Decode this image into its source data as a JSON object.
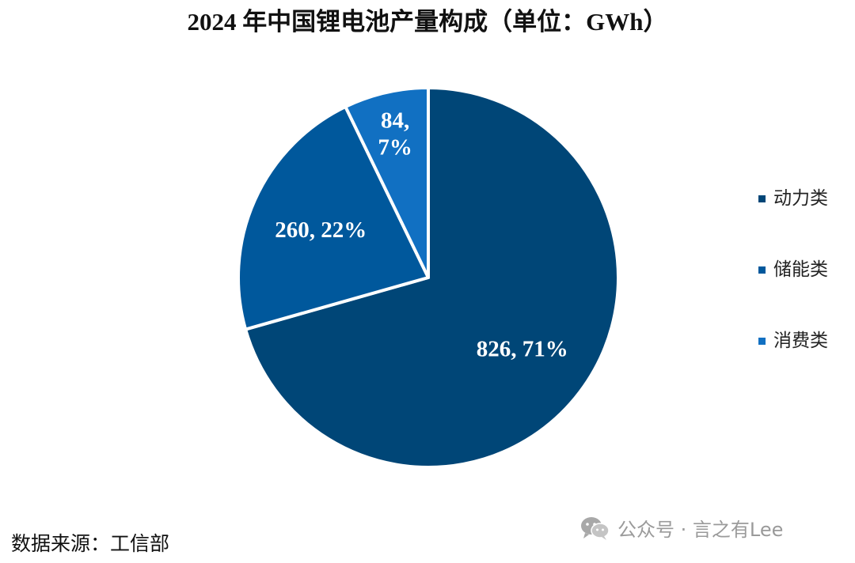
{
  "chart_data": {
    "type": "pie",
    "title": "2024 年中国锂电池产量构成（单位：GWh）",
    "categories": [
      "动力类",
      "储能类",
      "消费类"
    ],
    "values": [
      826,
      260,
      84
    ],
    "percents": [
      71,
      22,
      7
    ],
    "data_labels": [
      "826, 71%",
      "260, 22%",
      "84,\n7%"
    ],
    "colors": [
      "#004677",
      "#00589C",
      "#1170C2"
    ],
    "start_angle": "12 o'clock",
    "direction": "clockwise",
    "legend_position": "right"
  },
  "footer": {
    "source": "数据来源：工信部",
    "watermark": "公众号 · 言之有Lee",
    "watermark_icon": "wechat-icon"
  }
}
